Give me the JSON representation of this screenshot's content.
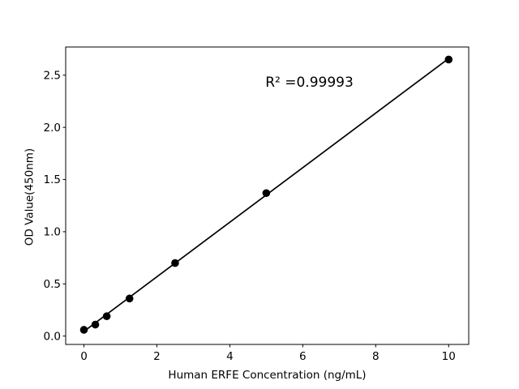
{
  "figure": {
    "background": "#ffffff",
    "foreground": "#000000"
  },
  "chart_data": {
    "type": "scatter",
    "title": "",
    "xlabel": "Human ERFE Concentration (ng/mL)",
    "ylabel": "OD Value(450nm)",
    "annotation": "R² =0.99993",
    "annotation_pos": {
      "x": 6.18,
      "y": 2.44
    },
    "x": [
      0,
      0.3125,
      0.625,
      1.25,
      2.5,
      5,
      10
    ],
    "y": [
      0.06,
      0.11,
      0.19,
      0.36,
      0.7,
      1.37,
      2.65
    ],
    "fit_line": {
      "x": [
        0,
        10
      ],
      "y": [
        0.045,
        2.66
      ]
    },
    "xlim": [
      -0.5,
      10.55
    ],
    "ylim": [
      -0.08,
      2.77
    ],
    "x_ticks": [
      0,
      2,
      4,
      6,
      8,
      10
    ],
    "x_tick_labels": [
      "0",
      "2",
      "4",
      "6",
      "8",
      "10"
    ],
    "y_ticks": [
      0.0,
      0.5,
      1.0,
      1.5,
      2.0,
      2.5
    ],
    "y_tick_labels": [
      "0.0",
      "0.5",
      "1.0",
      "1.5",
      "2.0",
      "2.5"
    ],
    "grid": false,
    "legend": null,
    "marker_color": "#000000",
    "line_color": "#000000"
  }
}
